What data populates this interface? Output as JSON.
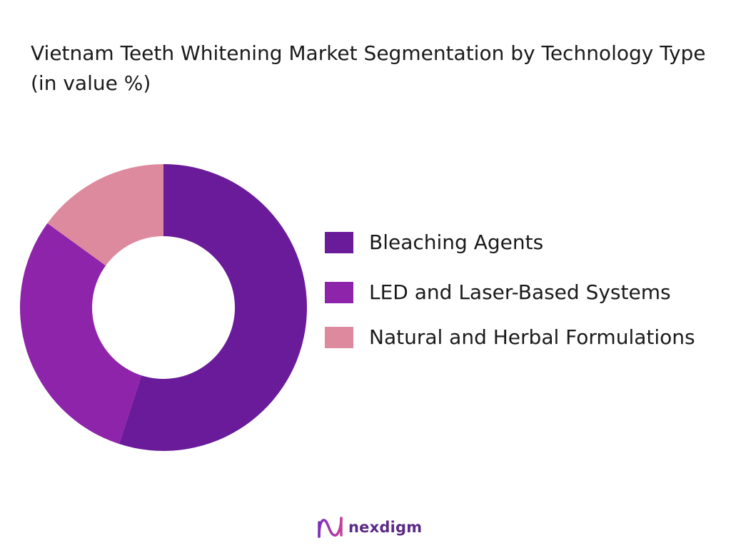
{
  "chart_data": {
    "type": "pie",
    "title": "Vietnam Teeth Whitening Market Segmentation by Technology Type (in value %)",
    "categories": [
      "Bleaching Agents",
      "LED and Laser-Based Systems",
      "Natural and Herbal Formulations"
    ],
    "values": [
      55,
      30,
      15
    ],
    "colors": [
      "#6a1b9a",
      "#8e24aa",
      "#dd8a9f"
    ],
    "donut": true,
    "legend_position": "right"
  },
  "brand": {
    "name": "nexdigm",
    "icon": "nexdigm-logo-icon"
  }
}
